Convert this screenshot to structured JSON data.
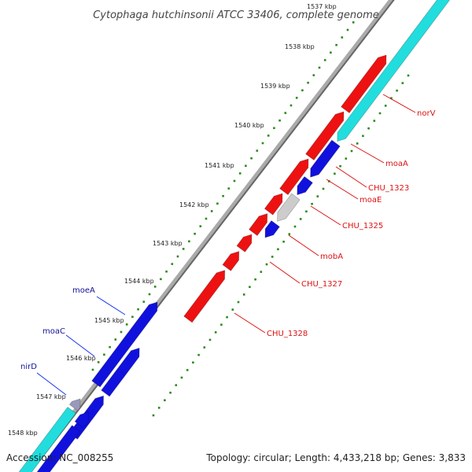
{
  "title": "Cytophaga hutchinsonii ATCC 33406, complete genome",
  "footer": {
    "accession": "Accession: NC_008255",
    "topology": "Topology: circular; Length: 4,433,218 bp; Genes: 3,833"
  },
  "colors": {
    "background": "#ffffff",
    "backbone": "#888888",
    "tick": "#2a8a1a",
    "forward_gene": "#ee1111",
    "reverse_gene": "#1111dd",
    "hypothetical_gene": "#cccccc",
    "neighbor_gene": "#22dddd",
    "fwd_label": "#dd1111",
    "rev_label": "#111199"
  },
  "scale_labels": [
    "1537 kbp",
    "1538 kbp",
    "1539 kbp",
    "1540 kbp",
    "1541 kbp",
    "1542 kbp",
    "1543 kbp",
    "1544 kbp",
    "1545 kbp",
    "1546 kbp",
    "1547 kbp",
    "1548 kbp"
  ],
  "gene_labels_forward": [
    "norV",
    "moaA",
    "CHU_1323",
    "moaE",
    "CHU_1325",
    "mobA",
    "CHU_1327",
    "CHU_1328"
  ],
  "gene_labels_reverse": [
    "moeA",
    "moaC",
    "nirD"
  ]
}
